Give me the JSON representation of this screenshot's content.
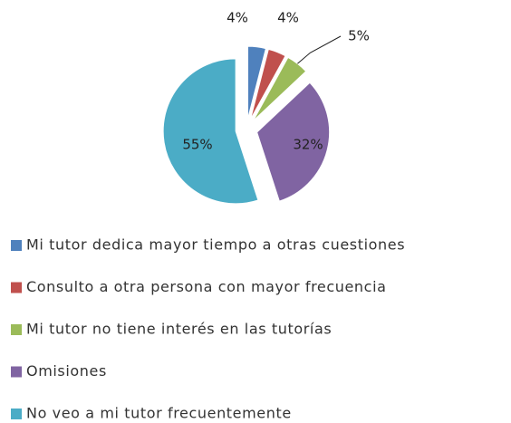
{
  "chart_data": {
    "type": "pie",
    "categories": [
      "Mi tutor dedica mayor tiempo a otras cuestiones",
      "Consulto a otra persona con mayor frecuencia",
      "Mi tutor no tiene interés en las tutorías",
      "Omisiones",
      "No veo a mi tutor frecuentemente"
    ],
    "values": [
      4,
      4,
      5,
      32,
      55
    ],
    "value_labels": [
      "4%",
      "4%",
      "5%",
      "32%",
      "55%"
    ],
    "colors": [
      "#4f81bd",
      "#c0504d",
      "#9bbb59",
      "#8064a2",
      "#4bacc6"
    ]
  }
}
